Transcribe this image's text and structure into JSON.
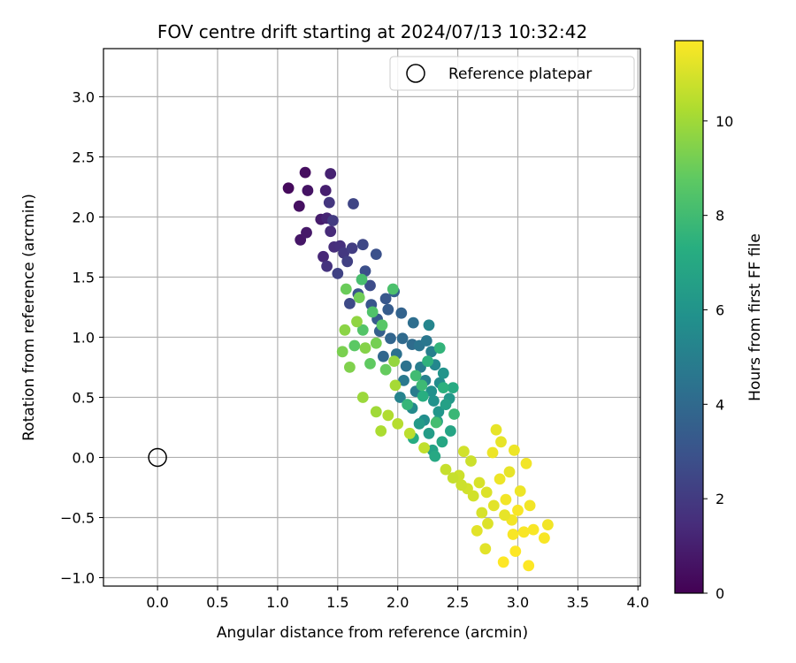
{
  "chart_data": {
    "type": "scatter",
    "title": "FOV centre drift starting at 2024/07/13 10:32:42",
    "xlabel": "Angular distance from reference (arcmin)",
    "ylabel": "Rotation from reference (arcmin)",
    "xlim": [
      -0.45,
      4.02
    ],
    "ylim": [
      -1.07,
      3.4
    ],
    "xticks": [
      "0.0",
      "0.5",
      "1.0",
      "1.5",
      "2.0",
      "2.5",
      "3.0",
      "3.5",
      "4.0"
    ],
    "yticks": [
      "−1.0",
      "−0.5",
      "0.0",
      "0.5",
      "1.0",
      "1.5",
      "2.0",
      "2.5",
      "3.0"
    ],
    "grid": true,
    "legend": {
      "position": "top-right",
      "entries": [
        "Reference platepar"
      ]
    },
    "reference_point": {
      "x": 0.0,
      "y": 0.0,
      "label": "Reference platepar"
    },
    "colorbar": {
      "label": "Hours from first FF file",
      "range": [
        0,
        11.7
      ],
      "ticks": [
        "0",
        "2",
        "4",
        "6",
        "8",
        "10"
      ],
      "colormap": "viridis"
    },
    "series": [
      {
        "columns": [
          "x",
          "y",
          "hours"
        ],
        "points": [
          [
            1.09,
            2.24,
            0.3
          ],
          [
            1.23,
            2.37,
            0.4
          ],
          [
            1.18,
            2.09,
            0.5
          ],
          [
            1.25,
            2.22,
            0.6
          ],
          [
            1.19,
            1.81,
            0.7
          ],
          [
            1.24,
            1.87,
            0.8
          ],
          [
            1.36,
            1.98,
            0.9
          ],
          [
            1.4,
            2.22,
            1.0
          ],
          [
            1.44,
            2.36,
            1.1
          ],
          [
            1.41,
            1.99,
            1.2
          ],
          [
            1.38,
            1.67,
            1.3
          ],
          [
            1.44,
            1.88,
            1.4
          ],
          [
            1.47,
            1.75,
            1.5
          ],
          [
            1.52,
            1.76,
            1.6
          ],
          [
            1.41,
            1.59,
            1.7
          ],
          [
            1.43,
            2.12,
            1.8
          ],
          [
            1.55,
            1.7,
            1.9
          ],
          [
            1.46,
            1.97,
            2.0
          ],
          [
            1.62,
            1.74,
            2.1
          ],
          [
            1.58,
            1.63,
            2.2
          ],
          [
            1.5,
            1.53,
            2.3
          ],
          [
            1.63,
            2.11,
            2.4
          ],
          [
            1.71,
            1.77,
            2.5
          ],
          [
            1.6,
            1.28,
            2.6
          ],
          [
            1.77,
            1.43,
            2.7
          ],
          [
            1.73,
            1.55,
            2.8
          ],
          [
            1.82,
            1.69,
            2.9
          ],
          [
            1.67,
            1.36,
            3.0
          ],
          [
            1.78,
            1.27,
            3.1
          ],
          [
            1.9,
            1.32,
            3.2
          ],
          [
            1.83,
            1.15,
            3.3
          ],
          [
            1.92,
            1.23,
            3.4
          ],
          [
            1.85,
            1.05,
            3.5
          ],
          [
            1.97,
            1.38,
            3.6
          ],
          [
            2.03,
            1.2,
            3.7
          ],
          [
            1.94,
            0.99,
            3.8
          ],
          [
            1.88,
            0.84,
            3.9
          ],
          [
            2.04,
            0.99,
            4.0
          ],
          [
            2.12,
            0.94,
            4.1
          ],
          [
            2.13,
            1.12,
            4.2
          ],
          [
            1.99,
            0.86,
            4.3
          ],
          [
            2.07,
            0.76,
            4.4
          ],
          [
            2.18,
            0.93,
            4.5
          ],
          [
            2.24,
            0.97,
            4.6
          ],
          [
            2.05,
            0.64,
            4.7
          ],
          [
            2.15,
            0.55,
            4.8
          ],
          [
            2.19,
            0.75,
            4.9
          ],
          [
            2.28,
            0.88,
            5.0
          ],
          [
            2.23,
            0.64,
            5.1
          ],
          [
            2.02,
            0.5,
            5.2
          ],
          [
            2.26,
            1.1,
            5.3
          ],
          [
            2.31,
            0.77,
            5.4
          ],
          [
            2.12,
            0.41,
            5.5
          ],
          [
            2.35,
            0.62,
            5.6
          ],
          [
            2.22,
            0.31,
            5.7
          ],
          [
            2.28,
            0.55,
            5.8
          ],
          [
            2.3,
            0.47,
            5.9
          ],
          [
            2.38,
            0.7,
            6.0
          ],
          [
            2.34,
            0.38,
            6.1
          ],
          [
            2.43,
            0.49,
            6.2
          ],
          [
            2.18,
            0.28,
            6.3
          ],
          [
            2.26,
            0.2,
            6.4
          ],
          [
            2.33,
            0.3,
            6.5
          ],
          [
            2.4,
            0.44,
            6.6
          ],
          [
            2.29,
            0.06,
            6.7
          ],
          [
            2.44,
            0.22,
            6.8
          ],
          [
            2.37,
            0.13,
            6.9
          ],
          [
            2.31,
            0.01,
            7.0
          ],
          [
            2.46,
            0.58,
            7.1
          ],
          [
            2.13,
            0.16,
            7.2
          ],
          [
            2.21,
            0.51,
            7.3
          ],
          [
            2.38,
            0.58,
            7.4
          ],
          [
            2.25,
            0.8,
            7.5
          ],
          [
            2.35,
            0.91,
            7.6
          ],
          [
            2.08,
            0.44,
            7.7
          ],
          [
            2.47,
            0.36,
            7.8
          ],
          [
            2.2,
            0.6,
            7.9
          ],
          [
            2.15,
            0.68,
            8.0
          ],
          [
            2.32,
            0.29,
            8.1
          ],
          [
            1.7,
            1.48,
            8.2
          ],
          [
            1.96,
            1.4,
            8.3
          ],
          [
            1.79,
            1.21,
            8.4
          ],
          [
            1.71,
            1.06,
            8.5
          ],
          [
            1.87,
            1.1,
            8.6
          ],
          [
            1.64,
            0.93,
            8.7
          ],
          [
            1.77,
            0.78,
            8.8
          ],
          [
            1.9,
            0.73,
            8.9
          ],
          [
            1.57,
            1.4,
            9.0
          ],
          [
            1.68,
            1.33,
            9.1
          ],
          [
            1.82,
            0.95,
            9.2
          ],
          [
            1.54,
            0.88,
            9.3
          ],
          [
            1.6,
            0.75,
            9.4
          ],
          [
            1.73,
            0.91,
            9.5
          ],
          [
            1.56,
            1.06,
            9.6
          ],
          [
            1.66,
            1.13,
            9.7
          ],
          [
            1.97,
            0.8,
            9.8
          ],
          [
            1.71,
            0.5,
            9.9
          ],
          [
            1.82,
            0.38,
            10.0
          ],
          [
            1.98,
            0.6,
            10.1
          ],
          [
            1.86,
            0.22,
            10.2
          ],
          [
            1.92,
            0.35,
            10.3
          ],
          [
            2.0,
            0.28,
            10.4
          ],
          [
            2.1,
            0.2,
            10.5
          ],
          [
            2.22,
            0.08,
            10.6
          ],
          [
            2.4,
            -0.1,
            10.7
          ],
          [
            2.51,
            -0.15,
            10.8
          ],
          [
            2.63,
            -0.32,
            10.9
          ],
          [
            2.7,
            -0.46,
            11.0
          ],
          [
            2.75,
            -0.55,
            11.1
          ],
          [
            2.66,
            -0.61,
            11.2
          ],
          [
            2.82,
            0.23,
            11.3
          ],
          [
            2.86,
            0.13,
            11.3
          ],
          [
            2.79,
            0.04,
            11.4
          ],
          [
            2.85,
            -0.18,
            11.4
          ],
          [
            2.9,
            -0.35,
            11.5
          ],
          [
            2.95,
            -0.52,
            11.5
          ],
          [
            3.0,
            -0.44,
            11.6
          ],
          [
            3.05,
            -0.62,
            11.6
          ],
          [
            2.98,
            -0.78,
            11.7
          ],
          [
            3.09,
            -0.9,
            11.7
          ],
          [
            2.55,
            0.05,
            10.9
          ],
          [
            2.61,
            -0.03,
            10.8
          ],
          [
            2.68,
            -0.21,
            11.0
          ],
          [
            2.74,
            -0.29,
            11.1
          ],
          [
            2.8,
            -0.4,
            11.2
          ],
          [
            2.93,
            -0.12,
            11.3
          ],
          [
            3.02,
            -0.28,
            11.4
          ],
          [
            3.1,
            -0.4,
            11.5
          ],
          [
            3.13,
            -0.6,
            11.6
          ],
          [
            2.88,
            -0.87,
            11.7
          ],
          [
            2.73,
            -0.76,
            11.2
          ],
          [
            3.22,
            -0.67,
            11.6
          ],
          [
            3.25,
            -0.56,
            11.5
          ],
          [
            2.97,
            0.06,
            11.4
          ],
          [
            2.58,
            -0.26,
            10.9
          ],
          [
            2.46,
            -0.17,
            10.7
          ],
          [
            2.53,
            -0.23,
            10.8
          ],
          [
            2.89,
            -0.48,
            11.3
          ],
          [
            2.96,
            -0.64,
            11.6
          ],
          [
            3.07,
            -0.05,
            11.5
          ]
        ]
      }
    ]
  }
}
